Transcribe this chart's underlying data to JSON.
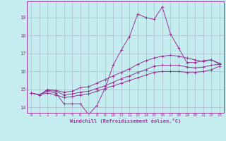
{
  "xlabel": "Windchill (Refroidissement éolien,°C)",
  "bg_color": "#c5ecee",
  "line_color": "#993399",
  "grid_color": "#aabbcc",
  "ylim": [
    13.7,
    19.9
  ],
  "xlim": [
    -0.5,
    23.5
  ],
  "x_ticks": [
    0,
    1,
    2,
    3,
    4,
    5,
    6,
    7,
    8,
    9,
    10,
    11,
    12,
    13,
    14,
    15,
    16,
    17,
    18,
    19,
    20,
    21,
    22,
    23
  ],
  "y_ticks": [
    14,
    15,
    16,
    17,
    18,
    19
  ],
  "series1_y": [
    14.8,
    14.7,
    14.9,
    14.8,
    14.2,
    14.2,
    14.2,
    13.6,
    14.1,
    15.05,
    16.35,
    17.2,
    17.95,
    19.2,
    19.0,
    18.9,
    19.6,
    18.1,
    17.3,
    16.5,
    16.5,
    16.6,
    16.65,
    16.4
  ],
  "series2_y": [
    14.8,
    14.7,
    15.0,
    14.95,
    14.85,
    14.9,
    15.1,
    15.15,
    15.35,
    15.55,
    15.75,
    15.95,
    16.15,
    16.4,
    16.6,
    16.75,
    16.85,
    16.9,
    16.85,
    16.75,
    16.65,
    16.55,
    16.65,
    16.45
  ],
  "series3_y": [
    14.8,
    14.7,
    14.95,
    14.9,
    14.7,
    14.75,
    14.85,
    14.9,
    15.05,
    15.2,
    15.4,
    15.6,
    15.75,
    15.95,
    16.1,
    16.3,
    16.35,
    16.35,
    16.35,
    16.25,
    16.2,
    16.25,
    16.35,
    16.4
  ],
  "series4_y": [
    14.8,
    14.7,
    14.8,
    14.7,
    14.55,
    14.6,
    14.7,
    14.75,
    14.9,
    15.05,
    15.2,
    15.35,
    15.5,
    15.65,
    15.8,
    15.95,
    16.0,
    16.0,
    16.0,
    15.95,
    15.95,
    16.0,
    16.1,
    16.3
  ]
}
